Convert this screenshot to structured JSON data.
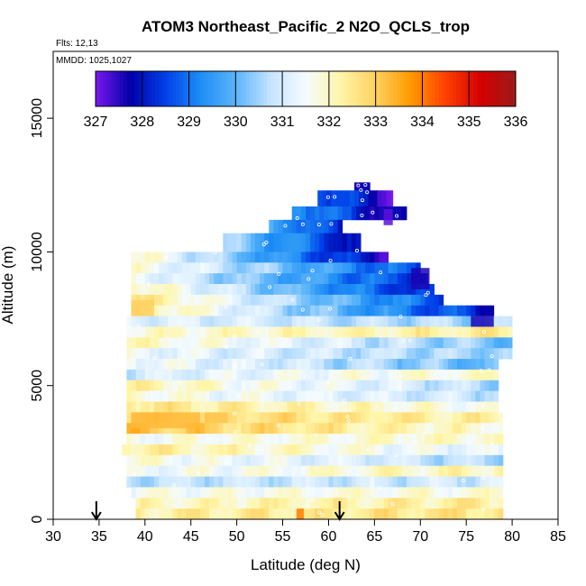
{
  "chart_data": {
    "type": "heatmap",
    "title": "ATOM3 Northeast_Pacific_2 N2O_QCLS_trop",
    "flights_note": "Flts: 12,13",
    "date_note": "MMDD: 1025,1027",
    "xlabel": "Latitude (deg N)",
    "ylabel": "Altitude (m)",
    "xlim": [
      30,
      85
    ],
    "ylim": [
      0,
      17500
    ],
    "x_ticks": [
      "30",
      "35",
      "40",
      "45",
      "50",
      "55",
      "60",
      "65",
      "70",
      "75",
      "80",
      "85"
    ],
    "y_ticks": [
      "0",
      "5000",
      "10000",
      "15000"
    ],
    "colorbar": {
      "ticks": [
        "327",
        "328",
        "329",
        "330",
        "331",
        "332",
        "333",
        "334",
        "335",
        "336"
      ],
      "range": [
        327,
        336
      ],
      "colors": [
        "#7b18f0",
        "#0000a8",
        "#0040e8",
        "#1e8ef5",
        "#5ab4fa",
        "#c6e4ff",
        "#f4fbff",
        "#fff6a8",
        "#ffd060",
        "#ff9a00",
        "#ff4000",
        "#d40000",
        "#9c1a1a"
      ]
    },
    "arrows_at_latitude": [
      34.7,
      61.2
    ],
    "layers": [
      {
        "y0": 12200,
        "y1": 12600,
        "x0": 62.8,
        "x1": 64.5,
        "v0": 327.6,
        "v1": 327.4
      },
      {
        "y0": 11700,
        "y1": 12300,
        "x0": 58.8,
        "x1": 67.0,
        "v0": 329.0,
        "v1": 327.3
      },
      {
        "y0": 11200,
        "y1": 11700,
        "x0": 56.0,
        "x1": 68.5,
        "v0": 329.6,
        "v1": 327.2
      },
      {
        "y0": 10700,
        "y1": 11200,
        "x0": 53.5,
        "x1": 61.5,
        "v0": 329.9,
        "v1": 328.0
      },
      {
        "y0": 10000,
        "y1": 10700,
        "x0": 48.5,
        "x1": 63.5,
        "v0": 330.5,
        "v1": 327.8
      },
      {
        "y0": 9600,
        "y1": 10000,
        "x0": 38.5,
        "x1": 66.5,
        "v0": 332.0,
        "v1": 327.5
      },
      {
        "y0": 9200,
        "y1": 9600,
        "x0": 38.5,
        "x1": 70.0,
        "v0": 331.8,
        "v1": 328.5
      },
      {
        "y0": 8800,
        "y1": 9200,
        "x0": 38.5,
        "x1": 70.8,
        "v0": 331.6,
        "v1": 328.2
      },
      {
        "y0": 8400,
        "y1": 8800,
        "x0": 38.5,
        "x1": 71.5,
        "v0": 332.2,
        "v1": 328.0
      },
      {
        "y0": 8000,
        "y1": 8400,
        "x0": 38.5,
        "x1": 72.5,
        "v0": 332.6,
        "v1": 328.6
      },
      {
        "y0": 7600,
        "y1": 8000,
        "x0": 38.5,
        "x1": 78.0,
        "v0": 332.5,
        "v1": 328.0
      },
      {
        "y0": 7200,
        "y1": 7600,
        "x0": 38.0,
        "x1": 80.0,
        "v0": 331.2,
        "v1": 330.5
      },
      {
        "y0": 6800,
        "y1": 7200,
        "x0": 38.0,
        "x1": 80.0,
        "v0": 331.8,
        "v1": 332.4
      },
      {
        "y0": 6400,
        "y1": 6800,
        "x0": 38.0,
        "x1": 80.0,
        "v0": 332.0,
        "v1": 330.2
      },
      {
        "y0": 6000,
        "y1": 6400,
        "x0": 38.0,
        "x1": 80.0,
        "v0": 331.4,
        "v1": 330.4
      },
      {
        "y0": 5600,
        "y1": 6000,
        "x0": 38.0,
        "x1": 78.5,
        "v0": 331.6,
        "v1": 330.0
      },
      {
        "y0": 5200,
        "y1": 5600,
        "x0": 38.0,
        "x1": 78.5,
        "v0": 331.0,
        "v1": 332.0
      },
      {
        "y0": 4800,
        "y1": 5200,
        "x0": 38.0,
        "x1": 78.5,
        "v0": 332.2,
        "v1": 330.6
      },
      {
        "y0": 4400,
        "y1": 4800,
        "x0": 38.0,
        "x1": 78.5,
        "v0": 331.8,
        "v1": 330.8
      },
      {
        "y0": 4000,
        "y1": 4400,
        "x0": 38.0,
        "x1": 78.5,
        "v0": 332.6,
        "v1": 331.6
      },
      {
        "y0": 3600,
        "y1": 4000,
        "x0": 38.0,
        "x1": 79.0,
        "v0": 333.0,
        "v1": 332.2
      },
      {
        "y0": 3200,
        "y1": 3600,
        "x0": 38.0,
        "x1": 79.0,
        "v0": 333.2,
        "v1": 331.8
      },
      {
        "y0": 2800,
        "y1": 3200,
        "x0": 38.0,
        "x1": 79.0,
        "v0": 331.6,
        "v1": 332.0
      },
      {
        "y0": 2400,
        "y1": 2800,
        "x0": 37.5,
        "x1": 79.0,
        "v0": 332.4,
        "v1": 331.2
      },
      {
        "y0": 2000,
        "y1": 2400,
        "x0": 38.0,
        "x1": 79.0,
        "v0": 331.8,
        "v1": 330.6
      },
      {
        "y0": 1600,
        "y1": 2000,
        "x0": 38.0,
        "x1": 79.0,
        "v0": 331.4,
        "v1": 332.2
      },
      {
        "y0": 1200,
        "y1": 1600,
        "x0": 38.0,
        "x1": 79.0,
        "v0": 330.8,
        "v1": 331.0
      },
      {
        "y0": 800,
        "y1": 1200,
        "x0": 38.5,
        "x1": 79.0,
        "v0": 331.6,
        "v1": 331.8
      },
      {
        "y0": 400,
        "y1": 800,
        "x0": 39.0,
        "x1": 79.0,
        "v0": 332.0,
        "v1": 332.4
      },
      {
        "y0": 0,
        "y1": 400,
        "x0": 39.0,
        "x1": 79.0,
        "v0": 332.3,
        "v1": 332.6
      }
    ],
    "warm_patches": [
      {
        "x0": 56.5,
        "x1": 57.3,
        "y0": 0,
        "y1": 400,
        "value": 334.0
      },
      {
        "x0": 38.5,
        "x1": 46.0,
        "y0": 3400,
        "y1": 4000,
        "value": 333.3
      },
      {
        "x0": 38.5,
        "x1": 41.0,
        "y0": 7600,
        "y1": 8200,
        "value": 333.0
      },
      {
        "x0": 66.0,
        "x1": 67.0,
        "y0": 11000,
        "y1": 11600,
        "value": 327.2
      },
      {
        "x0": 69.0,
        "x1": 71.0,
        "y0": 8600,
        "y1": 9400,
        "value": 327.6
      },
      {
        "x0": 75.5,
        "x1": 78.0,
        "y0": 7200,
        "y1": 7600,
        "value": 327.6
      }
    ]
  }
}
